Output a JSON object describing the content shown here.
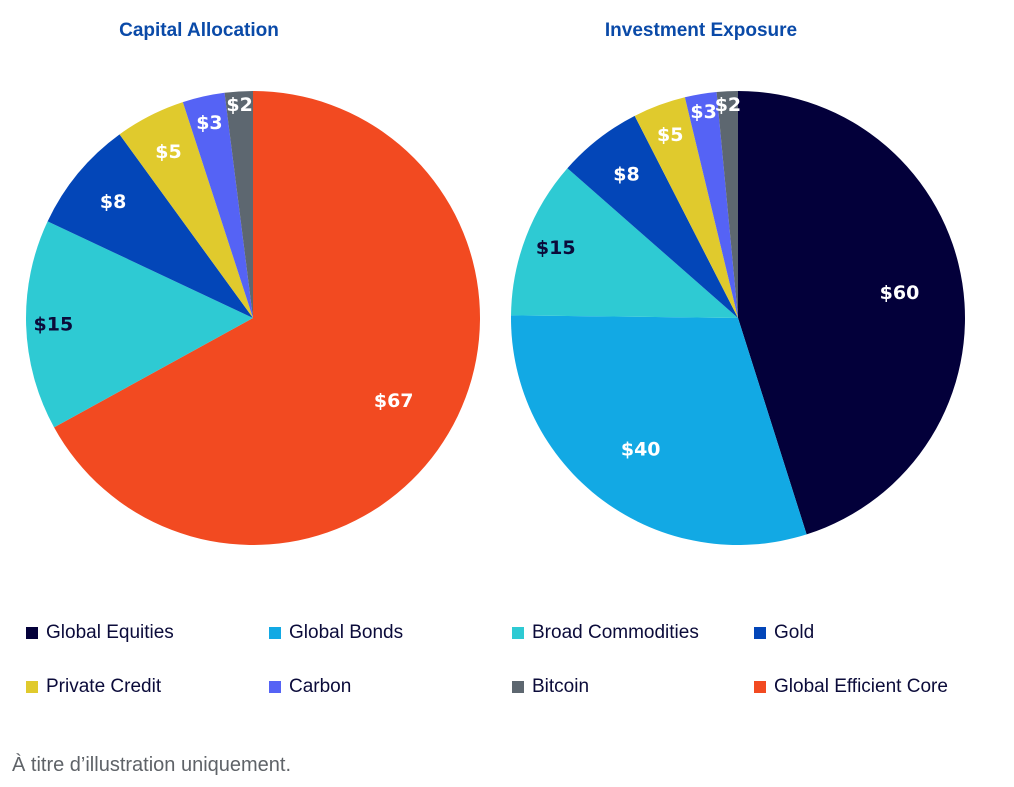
{
  "chart_data": [
    {
      "type": "pie",
      "title": "Capital Allocation",
      "start": "top",
      "direction": "clockwise",
      "slices": [
        {
          "label": "Global Efficient Core",
          "value": 67,
          "display": "$67",
          "color": "#f24a21",
          "text_color": "#ffffff"
        },
        {
          "label": "Broad Commodities",
          "value": 15,
          "display": "$15",
          "color": "#2ecad3",
          "text_color": "#0b0b3a"
        },
        {
          "label": "Gold",
          "value": 8,
          "display": "$8",
          "color": "#0346b8",
          "text_color": "#ffffff"
        },
        {
          "label": "Private Credit",
          "value": 5,
          "display": "$5",
          "color": "#e0ca2d",
          "text_color": "#ffffff"
        },
        {
          "label": "Carbon",
          "value": 3,
          "display": "$3",
          "color": "#5563f5",
          "text_color": "#ffffff"
        },
        {
          "label": "Bitcoin",
          "value": 2,
          "display": "$2",
          "color": "#5d6770",
          "text_color": "#ffffff"
        }
      ]
    },
    {
      "type": "pie",
      "title": "Investment Exposure",
      "start": "top",
      "direction": "clockwise",
      "slices": [
        {
          "label": "Global Equities",
          "value": 60,
          "display": "$60",
          "color": "#03003a",
          "text_color": "#ffffff"
        },
        {
          "label": "Global Bonds",
          "value": 40,
          "display": "$40",
          "color": "#12a9e4",
          "text_color": "#ffffff"
        },
        {
          "label": "Broad Commodities",
          "value": 15,
          "display": "$15",
          "color": "#2ecad3",
          "text_color": "#0b0b3a"
        },
        {
          "label": "Gold",
          "value": 8,
          "display": "$8",
          "color": "#0346b8",
          "text_color": "#ffffff"
        },
        {
          "label": "Private Credit",
          "value": 5,
          "display": "$5",
          "color": "#e0ca2d",
          "text_color": "#ffffff"
        },
        {
          "label": "Carbon",
          "value": 3,
          "display": "$3",
          "color": "#5563f5",
          "text_color": "#ffffff"
        },
        {
          "label": "Bitcoin",
          "value": 2,
          "display": "$2",
          "color": "#5d6770",
          "text_color": "#ffffff"
        }
      ]
    }
  ],
  "legend": {
    "placement": "bottom",
    "items": [
      {
        "label": "Global Equities",
        "color": "#03003a"
      },
      {
        "label": "Global Bonds",
        "color": "#12a9e4"
      },
      {
        "label": "Broad Commodities",
        "color": "#2ecad3"
      },
      {
        "label": "Gold",
        "color": "#0346b8"
      },
      {
        "label": "Private Credit",
        "color": "#e0ca2d"
      },
      {
        "label": "Carbon",
        "color": "#5563f5"
      },
      {
        "label": "Bitcoin",
        "color": "#5d6770"
      },
      {
        "label": "Global Efficient Core",
        "color": "#f24a21"
      }
    ]
  },
  "footnote": "À titre d’illustration uniquement."
}
